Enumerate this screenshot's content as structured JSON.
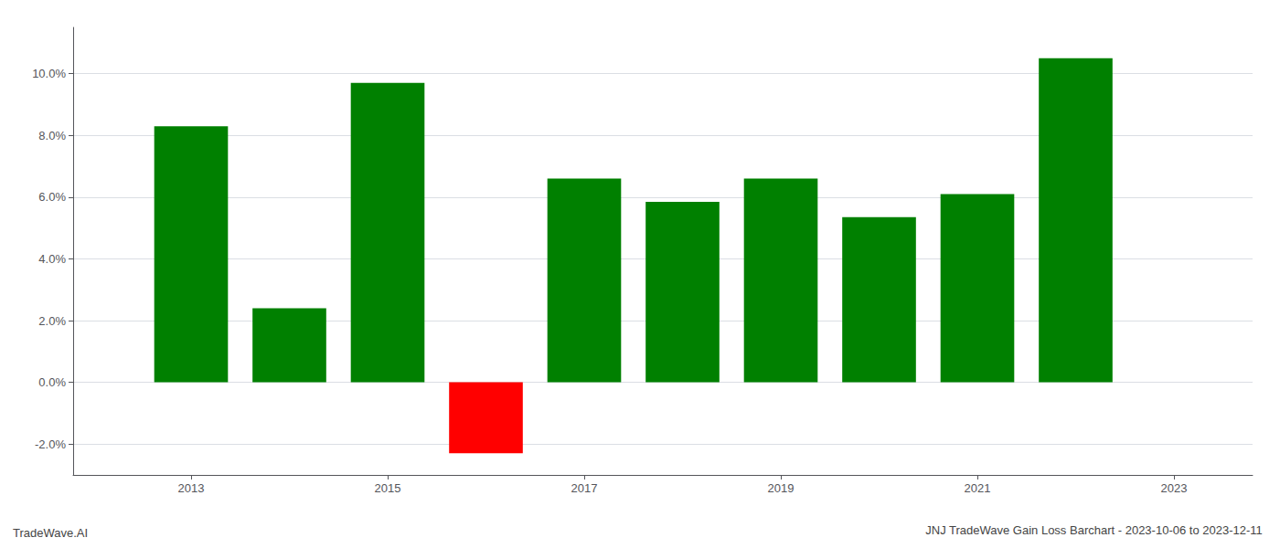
{
  "chart_data": {
    "type": "bar",
    "title": "JNJ TradeWave Gain Loss Barchart - 2023-10-06 to 2023-12-11",
    "annotations": [
      "TradeWave.AI"
    ],
    "x": [
      2013,
      2014,
      2015,
      2016,
      2017,
      2018,
      2019,
      2020,
      2021,
      2022
    ],
    "values": [
      0.083,
      0.024,
      0.097,
      -0.023,
      0.066,
      0.0585,
      0.066,
      0.0535,
      0.061,
      0.105
    ],
    "colors": [
      "#008000",
      "#008000",
      "#008000",
      "#ff0000",
      "#008000",
      "#008000",
      "#008000",
      "#008000",
      "#008000",
      "#008000"
    ],
    "xlim": [
      2011.8,
      2023.8
    ],
    "xticks": [
      2013,
      2015,
      2017,
      2019,
      2021,
      2023
    ],
    "ylim": [
      -0.03,
      0.115
    ],
    "yticks": [
      {
        "value": -0.02,
        "label": "-2.0%"
      },
      {
        "value": 0.0,
        "label": "0.0%"
      },
      {
        "value": 0.02,
        "label": "2.0%"
      },
      {
        "value": 0.04,
        "label": "4.0%"
      },
      {
        "value": 0.06,
        "label": "6.0%"
      },
      {
        "value": 0.08,
        "label": "8.0%"
      },
      {
        "value": 0.1,
        "label": "10.0%"
      }
    ],
    "grid": true
  }
}
